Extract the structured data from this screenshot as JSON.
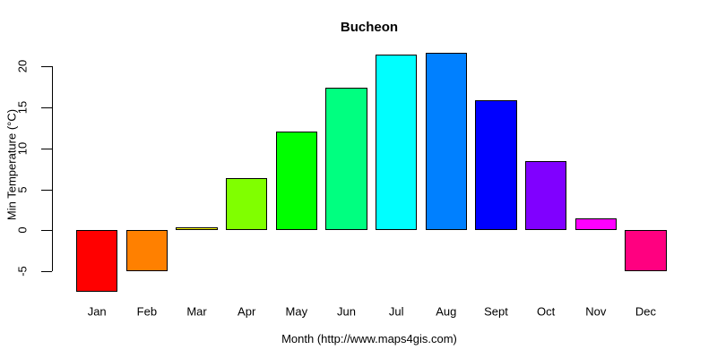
{
  "chart_data": {
    "type": "bar",
    "title": "Bucheon",
    "xlabel": "Month (http://www.maps4gis.com)",
    "ylabel": "Min Temperature (°C)",
    "categories": [
      "Jan",
      "Feb",
      "Mar",
      "Apr",
      "May",
      "Jun",
      "Jul",
      "Aug",
      "Sept",
      "Oct",
      "Nov",
      "Dec"
    ],
    "values": [
      -7.5,
      -5,
      0.4,
      6.4,
      12.1,
      17.4,
      21.5,
      21.7,
      15.9,
      8.5,
      1.5,
      -5
    ],
    "colors": [
      "#FF0000",
      "#FF8000",
      "#FFFF00",
      "#80FF00",
      "#00FF00",
      "#00FF80",
      "#00FFFF",
      "#0080FF",
      "#0000FF",
      "#8000FF",
      "#FF00FF",
      "#FF0080"
    ],
    "bar_border_color": "#000000",
    "background_color": "#FFFFFF",
    "yticks": [
      -5,
      0,
      5,
      10,
      15,
      20
    ],
    "ylim": [
      -8.2,
      22
    ],
    "grid": "off",
    "legend": "none"
  }
}
